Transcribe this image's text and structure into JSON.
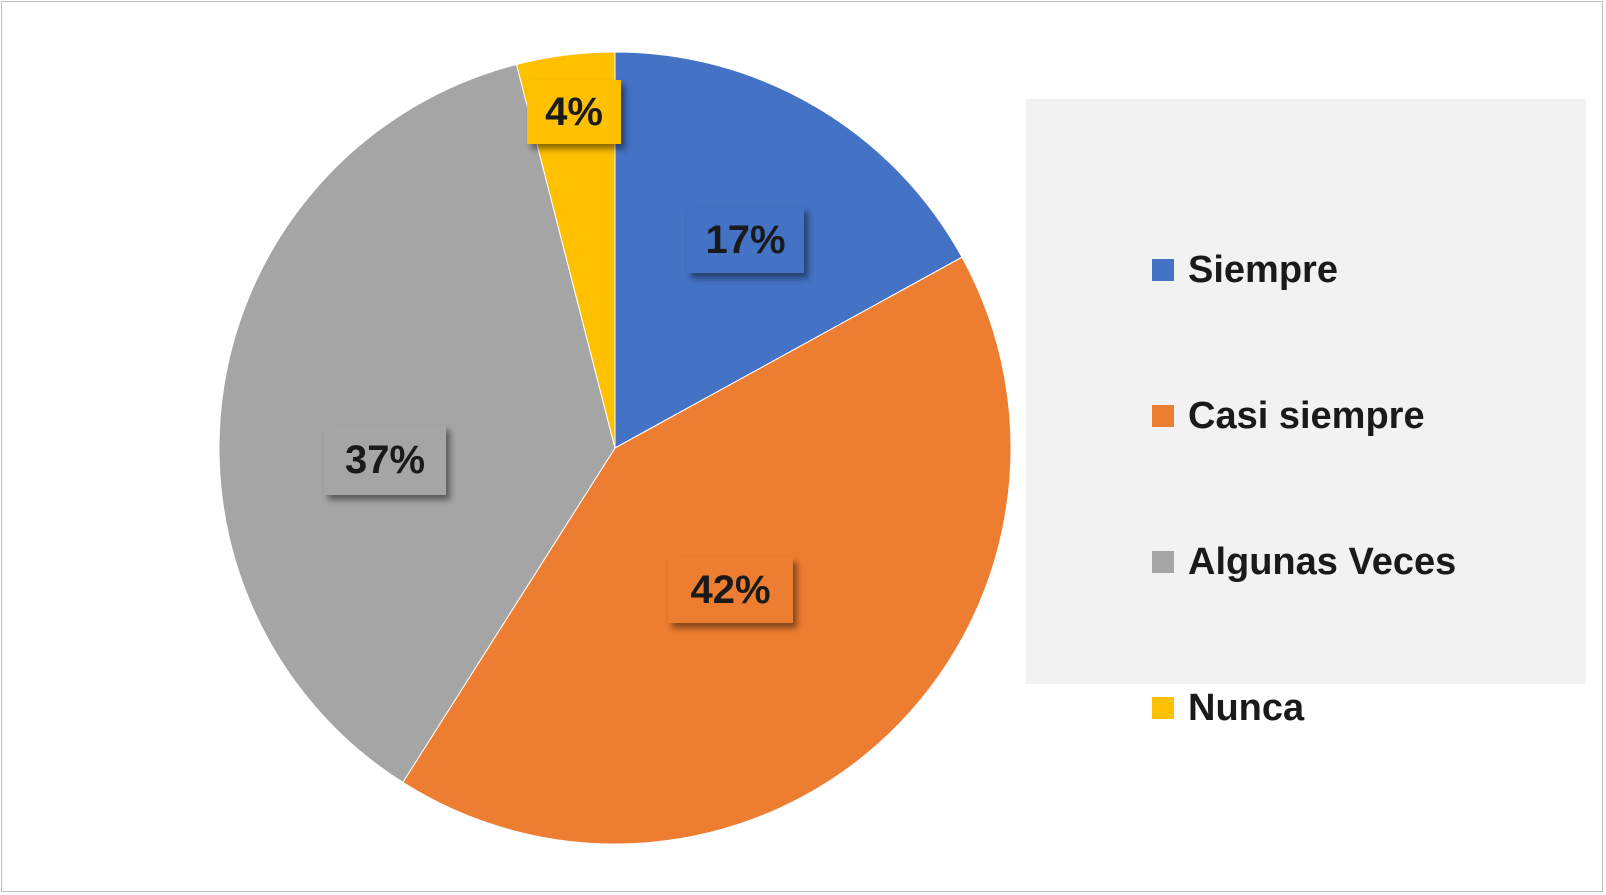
{
  "chart_data": {
    "type": "pie",
    "title": "",
    "categories": [
      "Siempre",
      "Casi siempre",
      "Algunas Veces",
      "Nunca"
    ],
    "values": [
      17,
      42,
      37,
      4
    ],
    "labels": [
      "17%",
      "42%",
      "37%",
      "4%"
    ],
    "colors": [
      "#4472c4",
      "#ed7d31",
      "#a5a5a5",
      "#ffc000"
    ],
    "legend_position": "right"
  }
}
